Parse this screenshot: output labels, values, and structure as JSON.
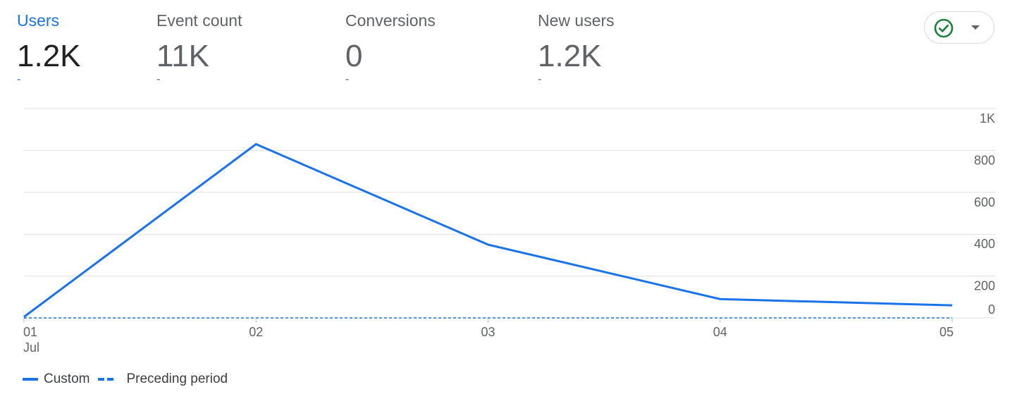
{
  "metrics": [
    {
      "label": "Users",
      "value": "1.2K",
      "change": "-"
    },
    {
      "label": "Event count",
      "value": "11K",
      "change": "-"
    },
    {
      "label": "Conversions",
      "value": "0",
      "change": "-"
    },
    {
      "label": "New users",
      "value": "1.2K",
      "change": "-"
    }
  ],
  "selected_metric": "Users",
  "status_control": {
    "icon": "check-circle-icon",
    "dropdown_icon": "arrow-drop-down-icon",
    "check_color": "#188038"
  },
  "colors": {
    "accent": "#1a73e8",
    "gridline": "#e0e0e0",
    "axis_text": "#5f6368"
  },
  "chart_data": {
    "type": "line",
    "x": [
      "01",
      "02",
      "03",
      "04",
      "05"
    ],
    "x_month_label": "Jul",
    "y_ticks": [
      "0",
      "200",
      "400",
      "600",
      "800",
      "1K"
    ],
    "ylim": [
      0,
      1000
    ],
    "grid": true,
    "legend_position": "bottom-left",
    "series": [
      {
        "name": "Custom",
        "values": [
          5,
          830,
          350,
          90,
          60
        ],
        "style": "solid"
      },
      {
        "name": "Preceding period",
        "values": [
          0,
          0,
          0,
          0,
          0
        ],
        "style": "dashed"
      }
    ]
  }
}
